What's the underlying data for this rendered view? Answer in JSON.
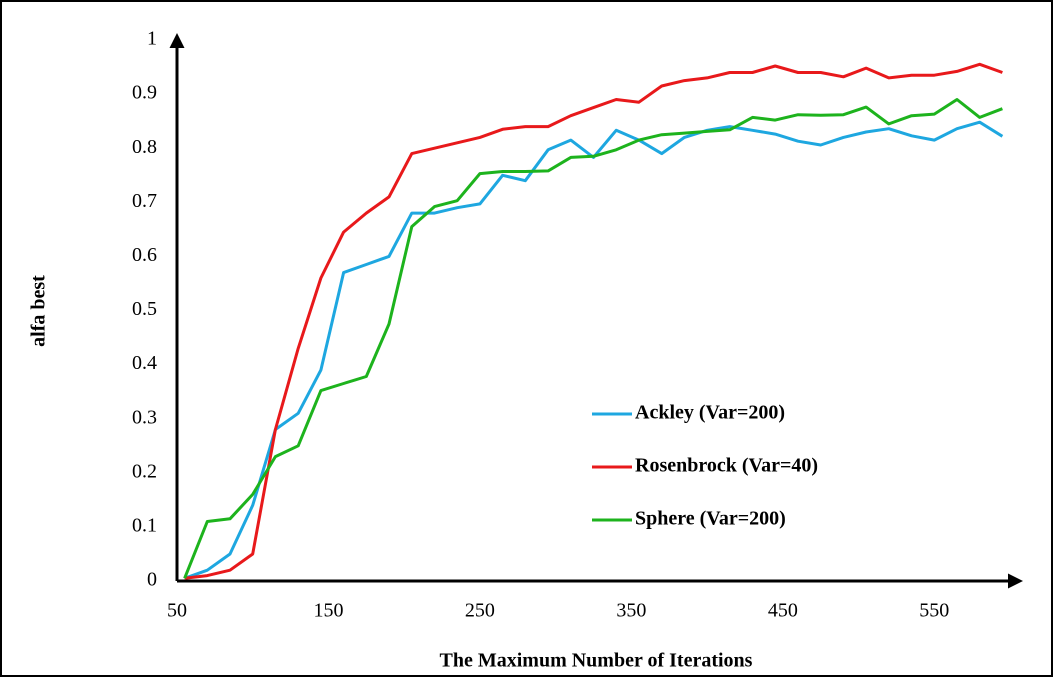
{
  "chart_data": {
    "type": "line",
    "xlabel": "The Maximum Number of Iterations",
    "ylabel": "alfa best",
    "x": [
      55,
      70,
      85,
      100,
      115,
      130,
      145,
      160,
      175,
      190,
      205,
      220,
      235,
      250,
      265,
      280,
      295,
      310,
      325,
      340,
      355,
      370,
      385,
      400,
      415,
      430,
      445,
      460,
      475,
      490,
      505,
      520,
      535,
      550,
      565,
      580,
      595
    ],
    "series": [
      {
        "name": "Ackley (Var=200)",
        "color": "#1ea7e0",
        "values": [
          0.005,
          0.02,
          0.05,
          0.14,
          0.28,
          0.31,
          0.39,
          0.57,
          0.585,
          0.6,
          0.68,
          0.68,
          0.69,
          0.697,
          0.75,
          0.74,
          0.797,
          0.815,
          0.783,
          0.833,
          0.815,
          0.79,
          0.82,
          0.833,
          0.84,
          0.833,
          0.826,
          0.813,
          0.806,
          0.82,
          0.83,
          0.836,
          0.823,
          0.815,
          0.836,
          0.848,
          0.822
        ]
      },
      {
        "name": "Rosenbrock (Var=40)",
        "color": "#e8191b",
        "values": [
          0.005,
          0.01,
          0.02,
          0.05,
          0.28,
          0.43,
          0.56,
          0.645,
          0.68,
          0.71,
          0.79,
          0.8,
          0.81,
          0.82,
          0.835,
          0.84,
          0.84,
          0.86,
          0.875,
          0.89,
          0.885,
          0.915,
          0.925,
          0.93,
          0.94,
          0.94,
          0.952,
          0.94,
          0.94,
          0.932,
          0.948,
          0.93,
          0.935,
          0.935,
          0.942,
          0.955,
          0.94
        ]
      },
      {
        "name": "Sphere (Var=200)",
        "color": "#1db31d",
        "values": [
          0.005,
          0.11,
          0.115,
          0.16,
          0.23,
          0.25,
          0.352,
          0.365,
          0.378,
          0.475,
          0.655,
          0.692,
          0.703,
          0.753,
          0.757,
          0.757,
          0.758,
          0.783,
          0.785,
          0.797,
          0.815,
          0.825,
          0.828,
          0.831,
          0.834,
          0.857,
          0.852,
          0.862,
          0.861,
          0.862,
          0.876,
          0.845,
          0.86,
          0.863,
          0.89,
          0.857,
          0.873
        ]
      }
    ],
    "xlim": [
      50,
      600
    ],
    "xticks": [
      50,
      150,
      250,
      350,
      450,
      550
    ],
    "ylim": [
      0,
      1
    ],
    "yticks": [
      0,
      0.1,
      0.2,
      0.3,
      0.4,
      0.5,
      0.6,
      0.7,
      0.8,
      0.9,
      1
    ],
    "grid": false,
    "legend": "lower right"
  }
}
